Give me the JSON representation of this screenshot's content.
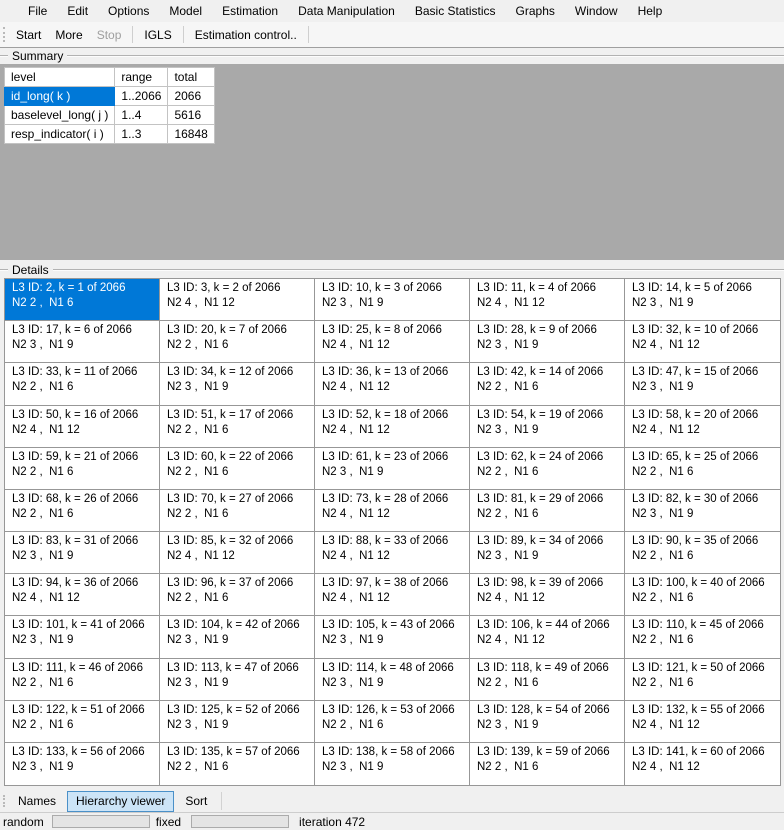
{
  "menu": {
    "items": [
      "File",
      "Edit",
      "Options",
      "Model",
      "Estimation",
      "Data Manipulation",
      "Basic Statistics",
      "Graphs",
      "Window",
      "Help"
    ]
  },
  "toolbar": {
    "buttons": [
      {
        "label": "Start",
        "enabled": true,
        "sep_after": false
      },
      {
        "label": "More",
        "enabled": true,
        "sep_after": false
      },
      {
        "label": "Stop",
        "enabled": false,
        "sep_after": true
      },
      {
        "label": "IGLS",
        "enabled": true,
        "sep_after": true
      },
      {
        "label": "Estimation control..",
        "enabled": true,
        "sep_after": true
      }
    ]
  },
  "summary": {
    "title": "Summary",
    "headers": [
      "level",
      "range",
      "total"
    ],
    "rows": [
      {
        "level": "id_long( k )",
        "range": "1..2066",
        "total": "2066",
        "selected": true
      },
      {
        "level": "baselevel_long( j )",
        "range": "1..4",
        "total": "5616",
        "selected": false
      },
      {
        "level": "resp_indicator( i )",
        "range": "1..3",
        "total": "16848",
        "selected": false
      }
    ]
  },
  "details": {
    "title": "Details",
    "columns": 5,
    "cells": [
      {
        "line1": "L3 ID: 2, k = 1 of 2066",
        "line2": "N2 2 ,  N1 6",
        "selected": true
      },
      {
        "line1": "L3 ID: 3, k = 2 of 2066",
        "line2": "N2 4 ,  N1 12",
        "selected": false
      },
      {
        "line1": "L3 ID: 10, k = 3 of 2066",
        "line2": "N2 3 ,  N1 9",
        "selected": false
      },
      {
        "line1": "L3 ID: 11, k = 4 of 2066",
        "line2": "N2 4 ,  N1 12",
        "selected": false
      },
      {
        "line1": "L3 ID: 14, k = 5 of 2066",
        "line2": "N2 3 ,  N1 9",
        "selected": false
      },
      {
        "line1": "L3 ID: 17, k = 6 of 2066",
        "line2": "N2 3 ,  N1 9",
        "selected": false
      },
      {
        "line1": "L3 ID: 20, k = 7 of 2066",
        "line2": "N2 2 ,  N1 6",
        "selected": false
      },
      {
        "line1": "L3 ID: 25, k = 8 of 2066",
        "line2": "N2 4 ,  N1 12",
        "selected": false
      },
      {
        "line1": "L3 ID: 28, k = 9 of 2066",
        "line2": "N2 3 ,  N1 9",
        "selected": false
      },
      {
        "line1": "L3 ID: 32, k = 10 of 2066",
        "line2": "N2 4 ,  N1 12",
        "selected": false
      },
      {
        "line1": "L3 ID: 33, k = 11 of 2066",
        "line2": "N2 2 ,  N1 6",
        "selected": false
      },
      {
        "line1": "L3 ID: 34, k = 12 of 2066",
        "line2": "N2 3 ,  N1 9",
        "selected": false
      },
      {
        "line1": "L3 ID: 36, k = 13 of 2066",
        "line2": "N2 4 ,  N1 12",
        "selected": false
      },
      {
        "line1": "L3 ID: 42, k = 14 of 2066",
        "line2": "N2 2 ,  N1 6",
        "selected": false
      },
      {
        "line1": "L3 ID: 47, k = 15 of 2066",
        "line2": "N2 3 ,  N1 9",
        "selected": false
      },
      {
        "line1": "L3 ID: 50, k = 16 of 2066",
        "line2": "N2 4 ,  N1 12",
        "selected": false
      },
      {
        "line1": "L3 ID: 51, k = 17 of 2066",
        "line2": "N2 2 ,  N1 6",
        "selected": false
      },
      {
        "line1": "L3 ID: 52, k = 18 of 2066",
        "line2": "N2 4 ,  N1 12",
        "selected": false
      },
      {
        "line1": "L3 ID: 54, k = 19 of 2066",
        "line2": "N2 3 ,  N1 9",
        "selected": false
      },
      {
        "line1": "L3 ID: 58, k = 20 of 2066",
        "line2": "N2 4 ,  N1 12",
        "selected": false
      },
      {
        "line1": "L3 ID: 59, k = 21 of 2066",
        "line2": "N2 2 ,  N1 6",
        "selected": false
      },
      {
        "line1": "L3 ID: 60, k = 22 of 2066",
        "line2": "N2 2 ,  N1 6",
        "selected": false
      },
      {
        "line1": "L3 ID: 61, k = 23 of 2066",
        "line2": "N2 3 ,  N1 9",
        "selected": false
      },
      {
        "line1": "L3 ID: 62, k = 24 of 2066",
        "line2": "N2 2 ,  N1 6",
        "selected": false
      },
      {
        "line1": "L3 ID: 65, k = 25 of 2066",
        "line2": "N2 2 ,  N1 6",
        "selected": false
      },
      {
        "line1": "L3 ID: 68, k = 26 of 2066",
        "line2": "N2 2 ,  N1 6",
        "selected": false
      },
      {
        "line1": "L3 ID: 70, k = 27 of 2066",
        "line2": "N2 2 ,  N1 6",
        "selected": false
      },
      {
        "line1": "L3 ID: 73, k = 28 of 2066",
        "line2": "N2 4 ,  N1 12",
        "selected": false
      },
      {
        "line1": "L3 ID: 81, k = 29 of 2066",
        "line2": "N2 2 ,  N1 6",
        "selected": false
      },
      {
        "line1": "L3 ID: 82, k = 30 of 2066",
        "line2": "N2 3 ,  N1 9",
        "selected": false
      },
      {
        "line1": "L3 ID: 83, k = 31 of 2066",
        "line2": "N2 3 ,  N1 9",
        "selected": false
      },
      {
        "line1": "L3 ID: 85, k = 32 of 2066",
        "line2": "N2 4 ,  N1 12",
        "selected": false
      },
      {
        "line1": "L3 ID: 88, k = 33 of 2066",
        "line2": "N2 4 ,  N1 12",
        "selected": false
      },
      {
        "line1": "L3 ID: 89, k = 34 of 2066",
        "line2": "N2 3 ,  N1 9",
        "selected": false
      },
      {
        "line1": "L3 ID: 90, k = 35 of 2066",
        "line2": "N2 2 ,  N1 6",
        "selected": false
      },
      {
        "line1": "L3 ID: 94, k = 36 of 2066",
        "line2": "N2 4 ,  N1 12",
        "selected": false
      },
      {
        "line1": "L3 ID: 96, k = 37 of 2066",
        "line2": "N2 2 ,  N1 6",
        "selected": false
      },
      {
        "line1": "L3 ID: 97, k = 38 of 2066",
        "line2": "N2 4 ,  N1 12",
        "selected": false
      },
      {
        "line1": "L3 ID: 98, k = 39 of 2066",
        "line2": "N2 4 ,  N1 12",
        "selected": false
      },
      {
        "line1": "L3 ID: 100, k = 40 of 2066",
        "line2": "N2 2 ,  N1 6",
        "selected": false
      },
      {
        "line1": "L3 ID: 101, k = 41 of 2066",
        "line2": "N2 3 ,  N1 9",
        "selected": false
      },
      {
        "line1": "L3 ID: 104, k = 42 of 2066",
        "line2": "N2 3 ,  N1 9",
        "selected": false
      },
      {
        "line1": "L3 ID: 105, k = 43 of 2066",
        "line2": "N2 3 ,  N1 9",
        "selected": false
      },
      {
        "line1": "L3 ID: 106, k = 44 of 2066",
        "line2": "N2 4 ,  N1 12",
        "selected": false
      },
      {
        "line1": "L3 ID: 110, k = 45 of 2066",
        "line2": "N2 2 ,  N1 6",
        "selected": false
      },
      {
        "line1": "L3 ID: 111, k = 46 of 2066",
        "line2": "N2 2 ,  N1 6",
        "selected": false
      },
      {
        "line1": "L3 ID: 113, k = 47 of 2066",
        "line2": "N2 3 ,  N1 9",
        "selected": false
      },
      {
        "line1": "L3 ID: 114, k = 48 of 2066",
        "line2": "N2 3 ,  N1 9",
        "selected": false
      },
      {
        "line1": "L3 ID: 118, k = 49 of 2066",
        "line2": "N2 2 ,  N1 6",
        "selected": false
      },
      {
        "line1": "L3 ID: 121, k = 50 of 2066",
        "line2": "N2 2 ,  N1 6",
        "selected": false
      },
      {
        "line1": "L3 ID: 122, k = 51 of 2066",
        "line2": "N2 2 ,  N1 6",
        "selected": false
      },
      {
        "line1": "L3 ID: 125, k = 52 of 2066",
        "line2": "N2 3 ,  N1 9",
        "selected": false
      },
      {
        "line1": "L3 ID: 126, k = 53 of 2066",
        "line2": "N2 2 ,  N1 6",
        "selected": false
      },
      {
        "line1": "L3 ID: 128, k = 54 of 2066",
        "line2": "N2 3 ,  N1 9",
        "selected": false
      },
      {
        "line1": "L3 ID: 132, k = 55 of 2066",
        "line2": "N2 4 ,  N1 12",
        "selected": false
      },
      {
        "line1": "L3 ID: 133, k = 56 of 2066",
        "line2": "N2 3 ,  N1 9",
        "selected": false
      },
      {
        "line1": "L3 ID: 135, k = 57 of 2066",
        "line2": "N2 2 ,  N1 6",
        "selected": false
      },
      {
        "line1": "L3 ID: 138, k = 58 of 2066",
        "line2": "N2 3 ,  N1 9",
        "selected": false
      },
      {
        "line1": "L3 ID: 139, k = 59 of 2066",
        "line2": "N2 2 ,  N1 6",
        "selected": false
      },
      {
        "line1": "L3 ID: 141, k = 60 of 2066",
        "line2": "N2 4 ,  N1 12",
        "selected": false
      }
    ]
  },
  "tabs": {
    "items": [
      {
        "label": "Names",
        "active": false
      },
      {
        "label": "Hierarchy viewer",
        "active": true
      },
      {
        "label": "Sort",
        "active": false
      }
    ]
  },
  "statusbar": {
    "random_label": "random",
    "fixed_label": "fixed",
    "iteration_label": "iteration 472"
  },
  "colors": {
    "selection": "#0078d7",
    "summary_panel_bg": "#a9a9a9",
    "active_tab_bg": "#cce4f7",
    "active_tab_border": "#4a90c8",
    "window_bg": "#f0f0f0"
  }
}
